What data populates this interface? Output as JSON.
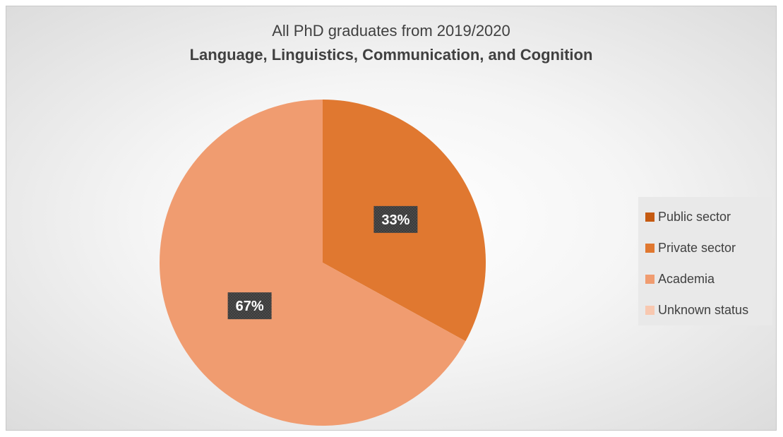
{
  "chart_data": {
    "type": "pie",
    "title": "All PhD graduates from 2019/2020",
    "subtitle": "Language, Linguistics, Communication, and Cognition",
    "categories": [
      "Public sector",
      "Private sector",
      "Academia",
      "Unknown status"
    ],
    "values": [
      0,
      33,
      67,
      0
    ],
    "data_labels": [
      "",
      "33%",
      "67%",
      ""
    ],
    "colors": [
      "#c55a11",
      "#e07830",
      "#f09c70",
      "#f8c8b0"
    ],
    "legend_position": "right"
  }
}
